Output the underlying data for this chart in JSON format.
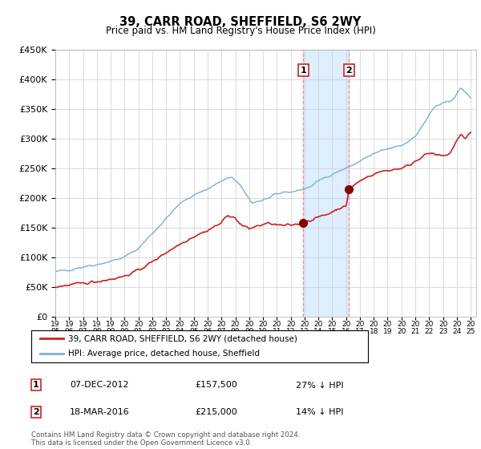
{
  "title": "39, CARR ROAD, SHEFFIELD, S6 2WY",
  "subtitle": "Price paid vs. HM Land Registry's House Price Index (HPI)",
  "legend_line1": "39, CARR ROAD, SHEFFIELD, S6 2WY (detached house)",
  "legend_line2": "HPI: Average price, detached house, Sheffield",
  "transaction1_date": "07-DEC-2012",
  "transaction1_price": 157500,
  "transaction1_pct": "27% ↓ HPI",
  "transaction2_date": "18-MAR-2016",
  "transaction2_price": 215000,
  "transaction2_pct": "14% ↓ HPI",
  "footer": "Contains HM Land Registry data © Crown copyright and database right 2024.\nThis data is licensed under the Open Government Licence v3.0.",
  "hpi_color": "#7bafd4",
  "price_color": "#cc2222",
  "dot_color": "#880000",
  "background_color": "#ffffff",
  "grid_color": "#cccccc",
  "highlight_color": "#ddeeff",
  "dashed_line_color": "#ff8888",
  "ylim": [
    0,
    450000
  ],
  "yticks": [
    0,
    50000,
    100000,
    150000,
    200000,
    250000,
    300000,
    350000,
    400000,
    450000
  ],
  "start_year": 1995,
  "end_year": 2025
}
